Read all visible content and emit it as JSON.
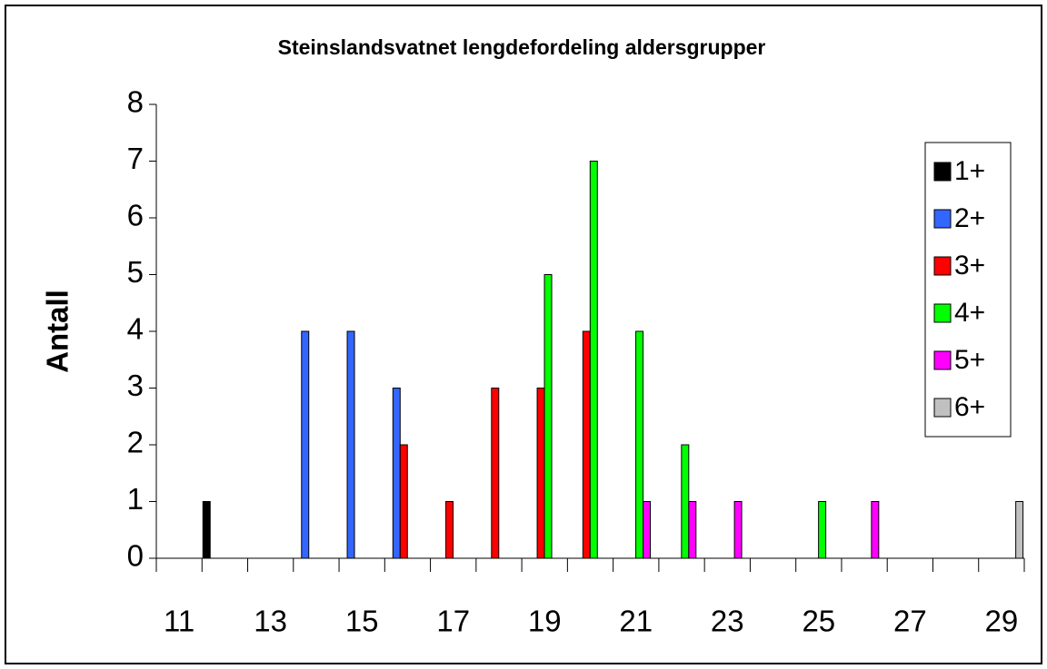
{
  "chart_data": {
    "type": "bar",
    "title": "Steinslandsvatnet lengdefordeling aldersgrupper",
    "ylabel": "Antall",
    "categories": [
      "11",
      null,
      "13",
      null,
      "15",
      null,
      "17",
      null,
      "19",
      null,
      "21",
      null,
      "23",
      null,
      "25",
      null,
      "27",
      null,
      "29"
    ],
    "series": [
      {
        "name": "1+",
        "color": "#000000",
        "values": [
          0,
          1,
          0,
          0,
          0,
          0,
          0,
          0,
          0,
          0,
          0,
          0,
          0,
          0,
          0,
          0,
          0,
          0,
          0
        ]
      },
      {
        "name": "2+",
        "color": "#3366ff",
        "values": [
          0,
          0,
          0,
          4,
          4,
          3,
          0,
          0,
          0,
          0,
          0,
          0,
          0,
          0,
          0,
          0,
          0,
          0,
          0
        ]
      },
      {
        "name": "3+",
        "color": "#ff0000",
        "values": [
          0,
          0,
          0,
          0,
          0,
          2,
          1,
          3,
          3,
          4,
          0,
          0,
          0,
          0,
          0,
          0,
          0,
          0,
          0
        ]
      },
      {
        "name": "4+",
        "color": "#00ff00",
        "values": [
          0,
          0,
          0,
          0,
          0,
          0,
          0,
          0,
          5,
          7,
          4,
          2,
          0,
          0,
          1,
          0,
          0,
          0,
          0
        ]
      },
      {
        "name": "5+",
        "color": "#ff00ff",
        "values": [
          0,
          0,
          0,
          0,
          0,
          0,
          0,
          0,
          0,
          0,
          1,
          1,
          1,
          0,
          0,
          1,
          0,
          0,
          0
        ]
      },
      {
        "name": "6+",
        "color": "#c0c0c0",
        "values": [
          0,
          0,
          0,
          0,
          0,
          0,
          0,
          0,
          0,
          0,
          0,
          0,
          0,
          0,
          0,
          0,
          0,
          0,
          1
        ]
      }
    ],
    "ylim": [
      0,
      8
    ],
    "yticks": [
      0,
      1,
      2,
      3,
      4,
      5,
      6,
      7,
      8
    ],
    "grid": false,
    "legend": "right"
  }
}
